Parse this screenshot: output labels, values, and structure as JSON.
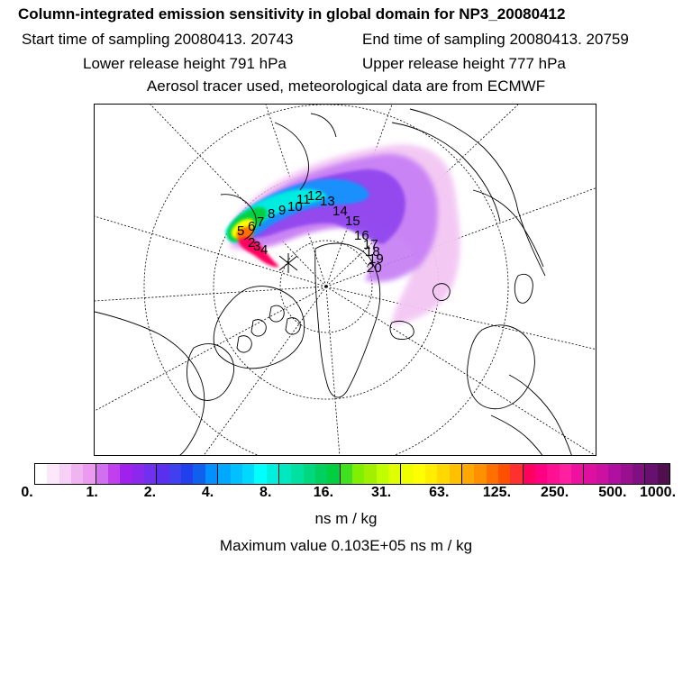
{
  "header": {
    "title": "Column-integrated emission sensitivity in global domain for NP3_20080412",
    "start_time": "Start time of sampling 20080413. 20743",
    "end_time": "End time of sampling 20080413. 20759",
    "lower_height": "Lower release height  791 hPa",
    "upper_height": "Upper release height  777 hPa",
    "tracer_info": "Aerosol tracer used, meteorological data are from ECMWF"
  },
  "map": {
    "trajectory_labels": [
      "5",
      "6",
      "7",
      "8",
      "9",
      "10",
      "11",
      "12",
      "13",
      "14",
      "15",
      "16",
      "17",
      "18",
      "19",
      "20",
      "2",
      "3",
      "4"
    ]
  },
  "colorbar": {
    "ticks": [
      "0.",
      "1.",
      "2.",
      "4.",
      "8.",
      "16.",
      "31.",
      "63.",
      "125.",
      "250.",
      "500.",
      "1000."
    ],
    "colors": [
      "#ffffff",
      "#fbe8fb",
      "#f6d0f6",
      "#f0b5f0",
      "#eb9af0",
      "#d070ee",
      "#c040ee",
      "#a020ee",
      "#8a28ee",
      "#7030ee",
      "#5a30ee",
      "#4040ee",
      "#2040ee",
      "#1060ee",
      "#0090ff",
      "#00a8ff",
      "#00c0ff",
      "#00d8ff",
      "#00ffff",
      "#00f0e0",
      "#00e8c0",
      "#00e0a0",
      "#00d880",
      "#00d060",
      "#00d040",
      "#40e020",
      "#80f000",
      "#a0f000",
      "#c0ff00",
      "#e0ff00",
      "#f0ff00",
      "#ffff00",
      "#ffee00",
      "#ffd800",
      "#ffc000",
      "#ffa800",
      "#ff9000",
      "#ff7000",
      "#ff5000",
      "#ff3030",
      "#ff0060",
      "#ff0080",
      "#ff1090",
      "#ff20a0",
      "#ee10a0",
      "#dd10a0",
      "#cc10a0",
      "#b010a0",
      "#981090",
      "#801080",
      "#681070",
      "#501050"
    ],
    "units": "ns m / kg",
    "max_value": "Maximum value  0.103E+05 ns m / kg"
  }
}
